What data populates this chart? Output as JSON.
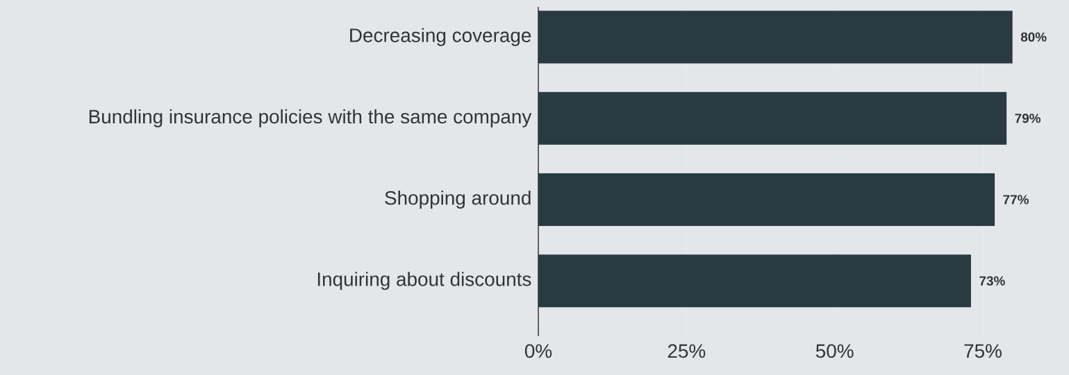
{
  "chart_data": {
    "type": "bar",
    "orientation": "horizontal",
    "categories": [
      "Decreasing coverage",
      "Bundling insurance policies with the same company",
      "Shopping around",
      "Inquiring about discounts"
    ],
    "values": [
      80,
      79,
      77,
      73
    ],
    "value_labels": [
      "80%",
      "79%",
      "77%",
      "73%"
    ],
    "color": "#293a42",
    "xticks": [
      {
        "value": 0,
        "label": "0%"
      },
      {
        "value": 25,
        "label": "25%"
      },
      {
        "value": 50,
        "label": "50%"
      },
      {
        "value": 75,
        "label": "75%"
      }
    ],
    "xlim": [
      0,
      80
    ],
    "grid": "x"
  }
}
